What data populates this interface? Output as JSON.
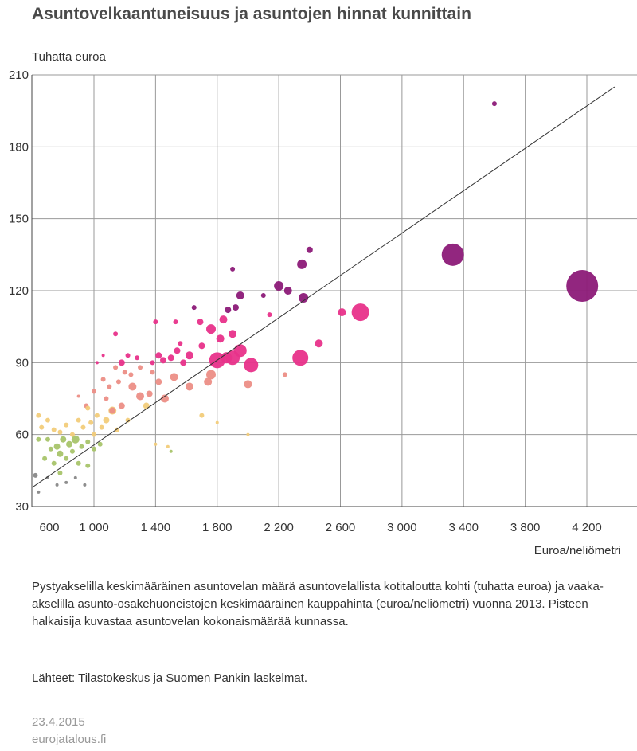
{
  "footer": {
    "description": "Pystyakselilla keskimääräinen asuntovelan määrä asuntovelallista kotitaloutta kohti (tuhatta euroa) ja vaaka-akselilla asunto-osakehuoneistojen keskimääräinen kauppahinta (euroa/neliömetri) vuonna 2013. Pisteen halkaisija kuvastaa asuntovelan kokonaismäärää kunnassa.",
    "sources": "Lähteet: Tilastokeskus ja Suomen Pankin laskelmat.",
    "date": "23.4.2015",
    "site": "eurojatalous.fi"
  },
  "chart_data": {
    "type": "scatter",
    "title": "Asuntovelkaantuneisuus ja asuntojen hinnat kunnittain",
    "ylabel": "Tuhatta euroa",
    "xlabel": "Euroa/neliömetri",
    "xlim": [
      600,
      4400
    ],
    "ylim": [
      30,
      210
    ],
    "xticks": [
      600,
      1000,
      1400,
      1800,
      2200,
      2600,
      3000,
      3400,
      3800,
      4200
    ],
    "xtick_labels": [
      "600",
      "1 000",
      "1 400",
      "1 800",
      "2 200",
      "2 600",
      "3 000",
      "3 400",
      "3 800",
      "4 200"
    ],
    "yticks": [
      30,
      60,
      90,
      120,
      150,
      180,
      210
    ],
    "grid": true,
    "colors": {
      "green": "#a8c46a",
      "yellow": "#f2cc7a",
      "salmon": "#ec8e86",
      "pink": "#e8318a",
      "purple": "#8c1a78",
      "gray": "#888888",
      "axis": "#444444",
      "grid": "#999999"
    },
    "trend_line": {
      "x": [
        600,
        4380
      ],
      "y": [
        38,
        205
      ]
    },
    "points": [
      {
        "x": 4170,
        "y": 122,
        "size": 20,
        "color": "purple"
      },
      {
        "x": 3330,
        "y": 135,
        "size": 14,
        "color": "purple"
      },
      {
        "x": 3600,
        "y": 198,
        "size": 3,
        "color": "purple"
      },
      {
        "x": 2730,
        "y": 111,
        "size": 11,
        "color": "pink"
      },
      {
        "x": 2340,
        "y": 92,
        "size": 10,
        "color": "pink"
      },
      {
        "x": 2020,
        "y": 89,
        "size": 9,
        "color": "pink"
      },
      {
        "x": 1800,
        "y": 91,
        "size": 10,
        "color": "pink"
      },
      {
        "x": 1950,
        "y": 95,
        "size": 8,
        "color": "pink"
      },
      {
        "x": 1900,
        "y": 92,
        "size": 9,
        "color": "pink"
      },
      {
        "x": 1860,
        "y": 92,
        "size": 7,
        "color": "pink"
      },
      {
        "x": 2200,
        "y": 122,
        "size": 6,
        "color": "purple"
      },
      {
        "x": 2260,
        "y": 120,
        "size": 5,
        "color": "purple"
      },
      {
        "x": 2350,
        "y": 131,
        "size": 6,
        "color": "purple"
      },
      {
        "x": 2400,
        "y": 137,
        "size": 4,
        "color": "purple"
      },
      {
        "x": 2360,
        "y": 117,
        "size": 6,
        "color": "purple"
      },
      {
        "x": 1950,
        "y": 118,
        "size": 5,
        "color": "purple"
      },
      {
        "x": 1870,
        "y": 112,
        "size": 4,
        "color": "purple"
      },
      {
        "x": 1920,
        "y": 113,
        "size": 4,
        "color": "purple"
      },
      {
        "x": 1840,
        "y": 108,
        "size": 5,
        "color": "pink"
      },
      {
        "x": 1900,
        "y": 102,
        "size": 5,
        "color": "pink"
      },
      {
        "x": 1820,
        "y": 100,
        "size": 5,
        "color": "pink"
      },
      {
        "x": 1760,
        "y": 104,
        "size": 6,
        "color": "pink"
      },
      {
        "x": 1700,
        "y": 97,
        "size": 4,
        "color": "pink"
      },
      {
        "x": 1690,
        "y": 107,
        "size": 4,
        "color": "pink"
      },
      {
        "x": 1650,
        "y": 113,
        "size": 3,
        "color": "purple"
      },
      {
        "x": 1900,
        "y": 129,
        "size": 3,
        "color": "purple"
      },
      {
        "x": 2140,
        "y": 110,
        "size": 3,
        "color": "pink"
      },
      {
        "x": 2610,
        "y": 111,
        "size": 5,
        "color": "pink"
      },
      {
        "x": 2460,
        "y": 98,
        "size": 5,
        "color": "pink"
      },
      {
        "x": 2100,
        "y": 118,
        "size": 3,
        "color": "purple"
      },
      {
        "x": 2240,
        "y": 85,
        "size": 3,
        "color": "salmon"
      },
      {
        "x": 1620,
        "y": 93,
        "size": 5,
        "color": "pink"
      },
      {
        "x": 1540,
        "y": 95,
        "size": 4,
        "color": "pink"
      },
      {
        "x": 1580,
        "y": 90,
        "size": 4,
        "color": "pink"
      },
      {
        "x": 1500,
        "y": 92,
        "size": 4,
        "color": "pink"
      },
      {
        "x": 1450,
        "y": 91,
        "size": 4,
        "color": "pink"
      },
      {
        "x": 1420,
        "y": 93,
        "size": 4,
        "color": "pink"
      },
      {
        "x": 1380,
        "y": 90,
        "size": 3,
        "color": "pink"
      },
      {
        "x": 1280,
        "y": 92,
        "size": 3,
        "color": "pink"
      },
      {
        "x": 1180,
        "y": 90,
        "size": 4,
        "color": "pink"
      },
      {
        "x": 1220,
        "y": 93,
        "size": 3,
        "color": "pink"
      },
      {
        "x": 1140,
        "y": 102,
        "size": 3,
        "color": "pink"
      },
      {
        "x": 1400,
        "y": 107,
        "size": 3,
        "color": "pink"
      },
      {
        "x": 1530,
        "y": 107,
        "size": 3,
        "color": "pink"
      },
      {
        "x": 1560,
        "y": 98,
        "size": 3,
        "color": "pink"
      },
      {
        "x": 1760,
        "y": 85,
        "size": 6,
        "color": "salmon"
      },
      {
        "x": 1740,
        "y": 82,
        "size": 5,
        "color": "salmon"
      },
      {
        "x": 2000,
        "y": 81,
        "size": 5,
        "color": "salmon"
      },
      {
        "x": 1620,
        "y": 80,
        "size": 5,
        "color": "salmon"
      },
      {
        "x": 1520,
        "y": 84,
        "size": 5,
        "color": "salmon"
      },
      {
        "x": 1460,
        "y": 75,
        "size": 5,
        "color": "salmon"
      },
      {
        "x": 1300,
        "y": 76,
        "size": 5,
        "color": "salmon"
      },
      {
        "x": 1250,
        "y": 80,
        "size": 5,
        "color": "salmon"
      },
      {
        "x": 1420,
        "y": 82,
        "size": 4,
        "color": "salmon"
      },
      {
        "x": 1360,
        "y": 77,
        "size": 4,
        "color": "salmon"
      },
      {
        "x": 1380,
        "y": 86,
        "size": 3,
        "color": "salmon"
      },
      {
        "x": 1300,
        "y": 88,
        "size": 3,
        "color": "salmon"
      },
      {
        "x": 1240,
        "y": 85,
        "size": 3,
        "color": "salmon"
      },
      {
        "x": 1200,
        "y": 86,
        "size": 3,
        "color": "salmon"
      },
      {
        "x": 1160,
        "y": 82,
        "size": 3,
        "color": "salmon"
      },
      {
        "x": 1100,
        "y": 80,
        "size": 3,
        "color": "salmon"
      },
      {
        "x": 1140,
        "y": 88,
        "size": 3,
        "color": "salmon"
      },
      {
        "x": 1060,
        "y": 83,
        "size": 3,
        "color": "salmon"
      },
      {
        "x": 1000,
        "y": 78,
        "size": 3,
        "color": "salmon"
      },
      {
        "x": 1080,
        "y": 75,
        "size": 3,
        "color": "salmon"
      },
      {
        "x": 1180,
        "y": 72,
        "size": 4,
        "color": "salmon"
      },
      {
        "x": 1120,
        "y": 70,
        "size": 4,
        "color": "salmon"
      },
      {
        "x": 950,
        "y": 72,
        "size": 3,
        "color": "salmon"
      },
      {
        "x": 900,
        "y": 76,
        "size": 2,
        "color": "salmon"
      },
      {
        "x": 1020,
        "y": 90,
        "size": 2,
        "color": "pink"
      },
      {
        "x": 1060,
        "y": 93,
        "size": 2,
        "color": "pink"
      },
      {
        "x": 1340,
        "y": 72,
        "size": 4,
        "color": "yellow"
      },
      {
        "x": 1120,
        "y": 70,
        "size": 5,
        "color": "yellow"
      },
      {
        "x": 1080,
        "y": 66,
        "size": 4,
        "color": "yellow"
      },
      {
        "x": 1020,
        "y": 68,
        "size": 3,
        "color": "yellow"
      },
      {
        "x": 980,
        "y": 65,
        "size": 3,
        "color": "yellow"
      },
      {
        "x": 960,
        "y": 71,
        "size": 3,
        "color": "yellow"
      },
      {
        "x": 1050,
        "y": 63,
        "size": 3,
        "color": "yellow"
      },
      {
        "x": 1000,
        "y": 60,
        "size": 3,
        "color": "yellow"
      },
      {
        "x": 930,
        "y": 63,
        "size": 3,
        "color": "yellow"
      },
      {
        "x": 900,
        "y": 66,
        "size": 3,
        "color": "yellow"
      },
      {
        "x": 860,
        "y": 60,
        "size": 3,
        "color": "yellow"
      },
      {
        "x": 820,
        "y": 64,
        "size": 3,
        "color": "yellow"
      },
      {
        "x": 780,
        "y": 61,
        "size": 3,
        "color": "yellow"
      },
      {
        "x": 740,
        "y": 62,
        "size": 3,
        "color": "yellow"
      },
      {
        "x": 700,
        "y": 66,
        "size": 3,
        "color": "yellow"
      },
      {
        "x": 660,
        "y": 63,
        "size": 3,
        "color": "yellow"
      },
      {
        "x": 640,
        "y": 68,
        "size": 3,
        "color": "yellow"
      },
      {
        "x": 1150,
        "y": 62,
        "size": 3,
        "color": "yellow"
      },
      {
        "x": 1220,
        "y": 66,
        "size": 3,
        "color": "yellow"
      },
      {
        "x": 1700,
        "y": 68,
        "size": 3,
        "color": "yellow"
      },
      {
        "x": 1800,
        "y": 65,
        "size": 2,
        "color": "yellow"
      },
      {
        "x": 2000,
        "y": 60,
        "size": 2,
        "color": "yellow"
      },
      {
        "x": 1400,
        "y": 56,
        "size": 2,
        "color": "yellow"
      },
      {
        "x": 1480,
        "y": 55,
        "size": 2,
        "color": "yellow"
      },
      {
        "x": 880,
        "y": 58,
        "size": 5,
        "color": "green"
      },
      {
        "x": 840,
        "y": 56,
        "size": 4,
        "color": "green"
      },
      {
        "x": 800,
        "y": 58,
        "size": 4,
        "color": "green"
      },
      {
        "x": 760,
        "y": 55,
        "size": 4,
        "color": "green"
      },
      {
        "x": 780,
        "y": 52,
        "size": 4,
        "color": "green"
      },
      {
        "x": 720,
        "y": 54,
        "size": 3,
        "color": "green"
      },
      {
        "x": 700,
        "y": 58,
        "size": 3,
        "color": "green"
      },
      {
        "x": 860,
        "y": 53,
        "size": 3,
        "color": "green"
      },
      {
        "x": 920,
        "y": 55,
        "size": 3,
        "color": "green"
      },
      {
        "x": 960,
        "y": 57,
        "size": 3,
        "color": "green"
      },
      {
        "x": 1000,
        "y": 54,
        "size": 3,
        "color": "green"
      },
      {
        "x": 1040,
        "y": 56,
        "size": 3,
        "color": "green"
      },
      {
        "x": 680,
        "y": 50,
        "size": 3,
        "color": "green"
      },
      {
        "x": 740,
        "y": 48,
        "size": 3,
        "color": "green"
      },
      {
        "x": 820,
        "y": 50,
        "size": 3,
        "color": "green"
      },
      {
        "x": 900,
        "y": 48,
        "size": 3,
        "color": "green"
      },
      {
        "x": 960,
        "y": 47,
        "size": 3,
        "color": "green"
      },
      {
        "x": 1500,
        "y": 53,
        "size": 2,
        "color": "green"
      },
      {
        "x": 640,
        "y": 58,
        "size": 3,
        "color": "green"
      },
      {
        "x": 780,
        "y": 44,
        "size": 3,
        "color": "green"
      },
      {
        "x": 620,
        "y": 43,
        "size": 3,
        "color": "gray"
      },
      {
        "x": 640,
        "y": 36,
        "size": 2,
        "color": "gray"
      },
      {
        "x": 700,
        "y": 42,
        "size": 2,
        "color": "gray"
      },
      {
        "x": 820,
        "y": 40,
        "size": 2,
        "color": "gray"
      },
      {
        "x": 880,
        "y": 42,
        "size": 2,
        "color": "gray"
      },
      {
        "x": 940,
        "y": 39,
        "size": 2,
        "color": "gray"
      },
      {
        "x": 760,
        "y": 39,
        "size": 2,
        "color": "gray"
      }
    ]
  }
}
